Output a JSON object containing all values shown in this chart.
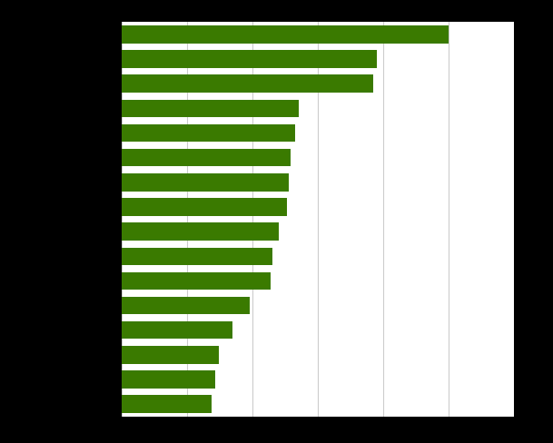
{
  "bar_color": "#3a7a00",
  "background_color": "#ffffff",
  "outer_background": "#000000",
  "grid_color": "#cccccc",
  "values": [
    500000,
    390000,
    385000,
    270000,
    265000,
    258000,
    255000,
    252000,
    240000,
    230000,
    228000,
    195000,
    170000,
    148000,
    143000,
    138000
  ],
  "xlim": [
    0,
    600000
  ],
  "xticks": [
    0,
    100000,
    200000,
    300000,
    400000,
    500000,
    600000
  ],
  "bar_height": 0.72,
  "n_bars": 16
}
